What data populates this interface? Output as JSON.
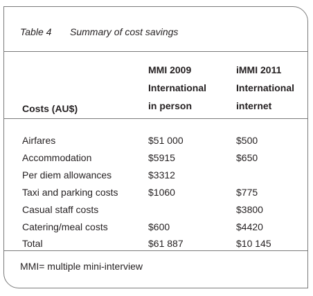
{
  "table": {
    "caption_number": "Table 4",
    "caption_title": "Summary of cost savings",
    "columns": [
      {
        "lines": [
          "Costs (AU$)"
        ]
      },
      {
        "lines": [
          "MMI 2009",
          "International",
          "in person"
        ]
      },
      {
        "lines": [
          "iMMI 2011",
          "International",
          "internet"
        ]
      }
    ],
    "rows": [
      {
        "item": "Airfares",
        "mmi_2009": "$51 000",
        "immi_2011": "$500"
      },
      {
        "item": "Accommodation",
        "mmi_2009": "$5915",
        "immi_2011": "$650"
      },
      {
        "item": "Per diem allowances",
        "mmi_2009": "$3312",
        "immi_2011": ""
      },
      {
        "item": "Taxi and parking costs",
        "mmi_2009": "$1060",
        "immi_2011": "$775"
      },
      {
        "item": "Casual staff costs",
        "mmi_2009": "",
        "immi_2011": "$3800"
      },
      {
        "item": "Catering/meal costs",
        "mmi_2009": "$600",
        "immi_2011": "$4420"
      },
      {
        "item": "Total",
        "mmi_2009": "$61 887",
        "immi_2011": "$10 145"
      }
    ],
    "footnote": "MMI= multiple mini-interview"
  }
}
